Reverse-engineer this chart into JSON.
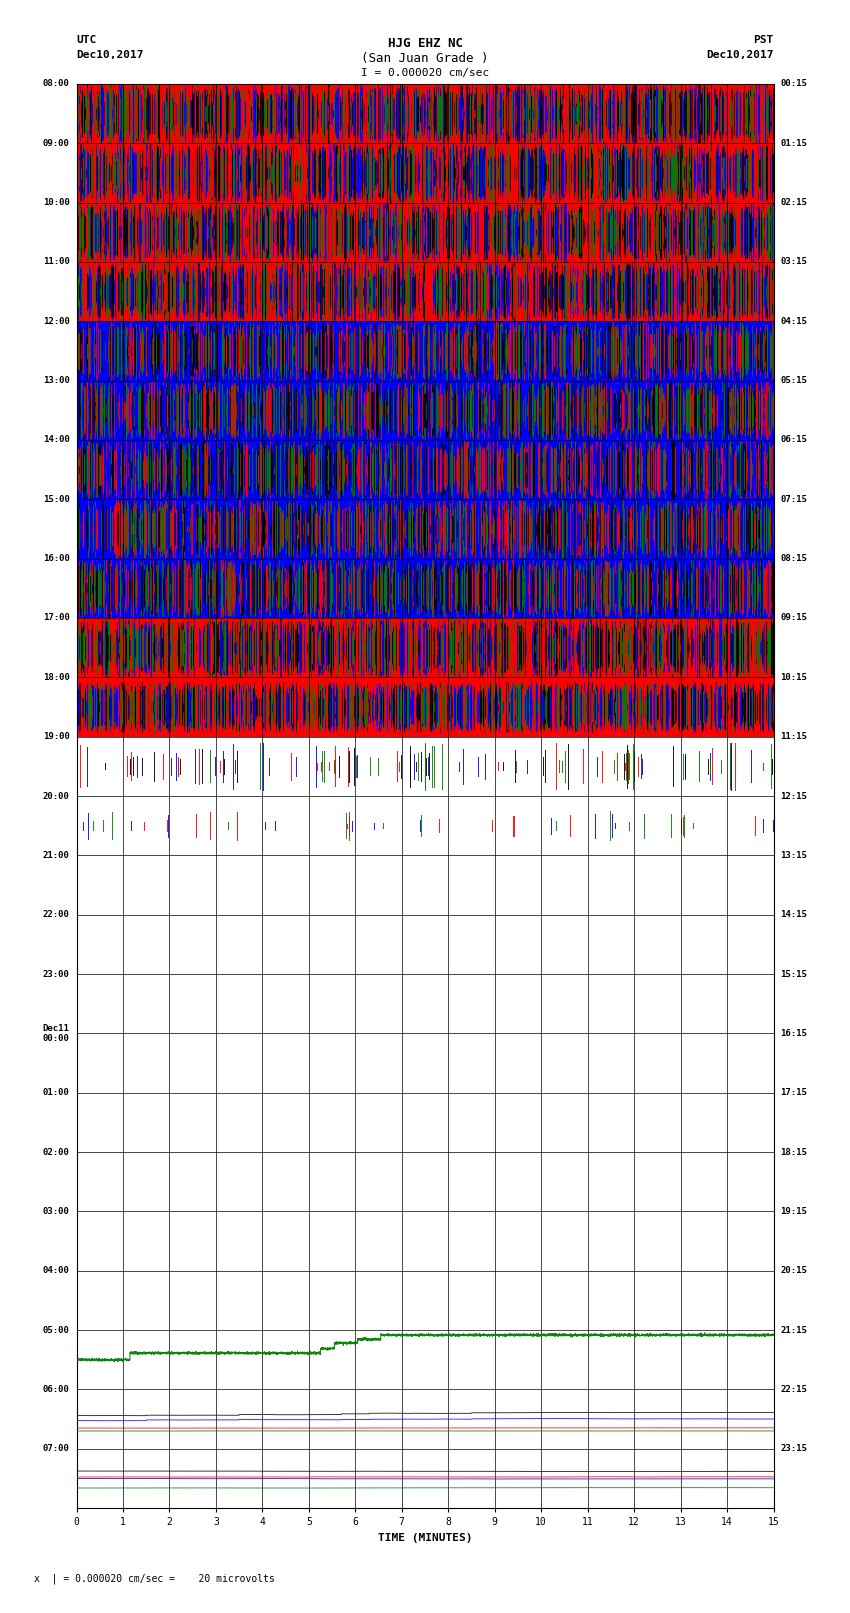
{
  "title_line1": "HJG EHZ NC",
  "title_line2": "(San Juan Grade )",
  "scale_label": "I = 0.000020 cm/sec",
  "left_label_top": "UTC",
  "left_label_date": "Dec10,2017",
  "right_label_top": "PST",
  "right_label_date": "Dec10,2017",
  "bottom_label": "TIME (MINUTES)",
  "footer_label": "x  | = 0.000020 cm/sec =    20 microvolts",
  "utc_times": [
    "08:00",
    "09:00",
    "10:00",
    "11:00",
    "12:00",
    "13:00",
    "14:00",
    "15:00",
    "16:00",
    "17:00",
    "18:00",
    "19:00",
    "20:00",
    "21:00",
    "22:00",
    "23:00",
    "Dec11\n00:00",
    "01:00",
    "02:00",
    "03:00",
    "04:00",
    "05:00",
    "06:00",
    "07:00"
  ],
  "pst_times": [
    "00:15",
    "01:15",
    "02:15",
    "03:15",
    "04:15",
    "05:15",
    "06:15",
    "07:15",
    "08:15",
    "09:15",
    "10:15",
    "11:15",
    "12:15",
    "13:15",
    "14:15",
    "15:15",
    "16:15",
    "17:15",
    "18:15",
    "19:15",
    "20:15",
    "21:15",
    "22:15",
    "23:15"
  ],
  "x_ticks": [
    0,
    1,
    2,
    3,
    4,
    5,
    6,
    7,
    8,
    9,
    10,
    11,
    12,
    13,
    14,
    15
  ],
  "figsize": [
    8.5,
    16.13
  ],
  "dpi": 100,
  "bg_color": "#ffffff",
  "plot_bg_color": "#ffffff",
  "colors": {
    "red": "#ff0000",
    "blue": "#0000ff",
    "green": "#008000",
    "black": "#000000"
  }
}
